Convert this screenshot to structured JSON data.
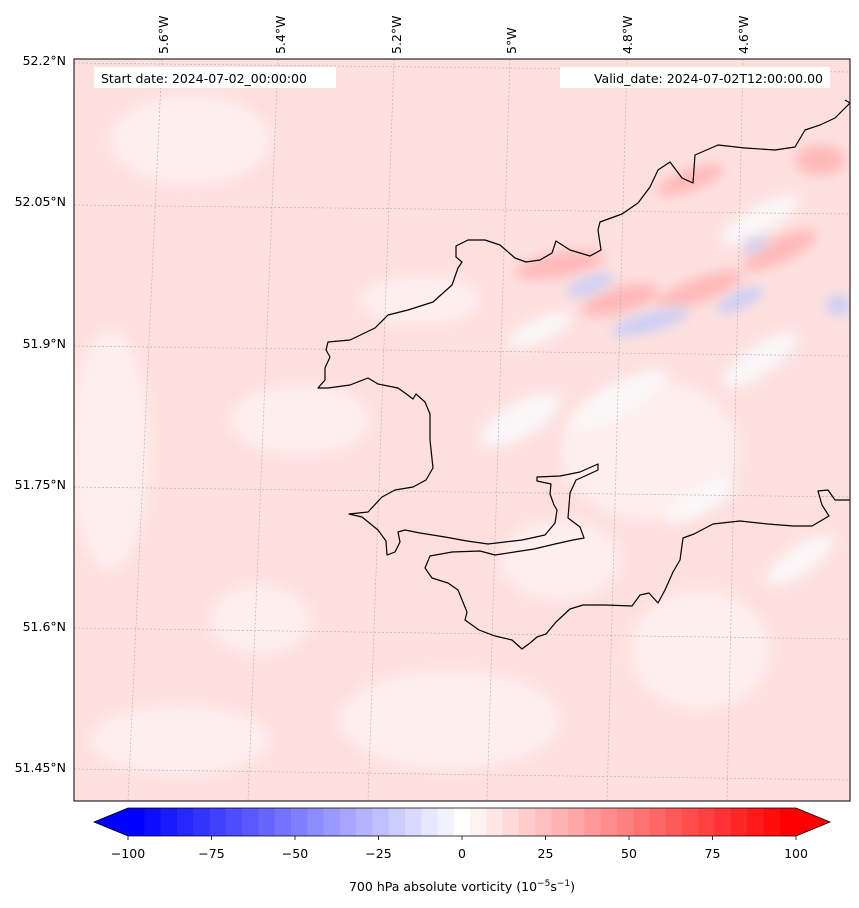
{
  "map": {
    "start_label": "Start date: 2024-07-02_00:00:00",
    "valid_label": "Valid_date: 2024-07-02T12:00:00.00",
    "lon_labels": [
      "5.6°W",
      "5.4°W",
      "5.2°W",
      "5°W",
      "4.8°W",
      "4.6°W"
    ],
    "lat_labels": [
      "52.2°N",
      "52.05°N",
      "51.9°N",
      "51.75°N",
      "51.6°N",
      "51.45°N"
    ],
    "field": "700 hPa absolute vorticity",
    "colormap": "bwr",
    "coastline_color": "#000000",
    "gridline_style": "dotted"
  },
  "colorbar": {
    "ticks": [
      "−100",
      "−75",
      "−50",
      "−25",
      "0",
      "25",
      "50",
      "75",
      "100"
    ],
    "label_main": "700 hPa absolute vorticity (10",
    "label_exp1": "−5",
    "label_mid": "s",
    "label_exp2": "−1",
    "label_end": ")",
    "range": [
      -100,
      100
    ],
    "levels": 41,
    "extend": "both",
    "min_color": "#0000ff",
    "mid_color": "#ffffff",
    "max_color": "#ff0000"
  }
}
